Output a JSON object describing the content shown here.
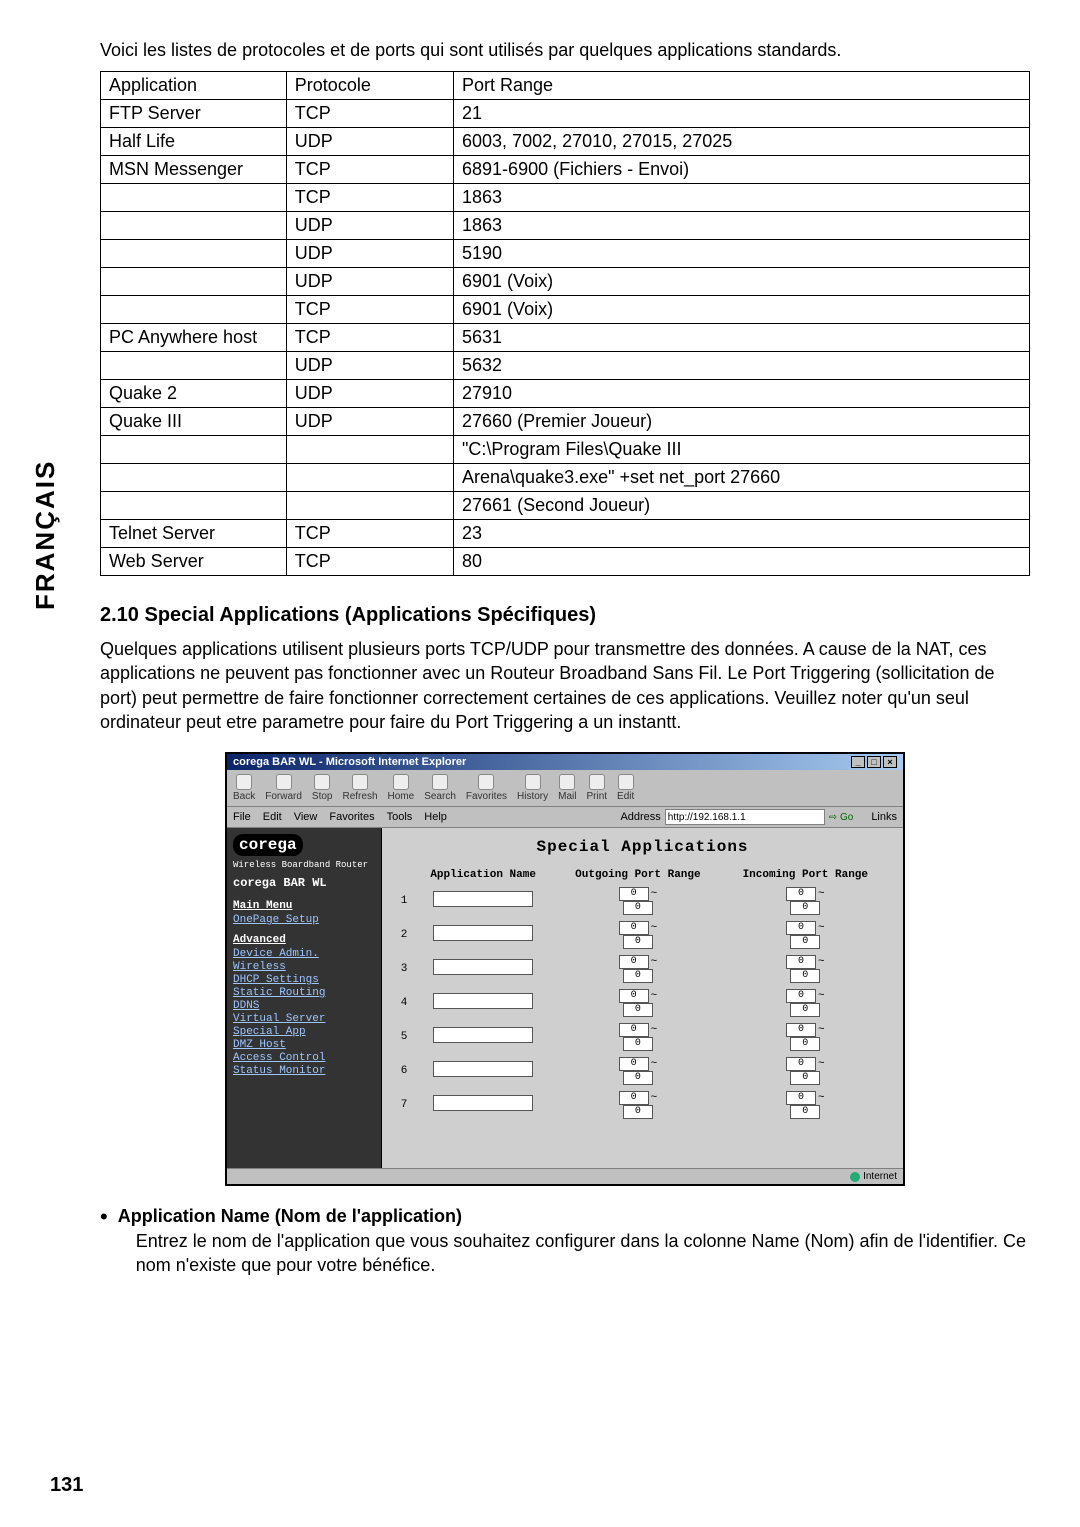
{
  "sidebar_lang": "FRANÇAIS",
  "page_number": "131",
  "intro": "Voici les listes de protocoles et de ports qui sont utilisés par quelques applications standards.",
  "table": {
    "headers": [
      "Application",
      "Protocole",
      "Port Range"
    ],
    "rows": [
      [
        "FTP Server",
        "TCP",
        "21"
      ],
      [
        "Half Life",
        "UDP",
        "6003, 7002, 27010, 27015, 27025"
      ],
      [
        "MSN Messenger",
        "TCP",
        "6891-6900 (Fichiers - Envoi)"
      ],
      [
        "",
        "TCP",
        "1863"
      ],
      [
        "",
        "UDP",
        "1863"
      ],
      [
        "",
        "UDP",
        "5190"
      ],
      [
        "",
        "UDP",
        "6901 (Voix)"
      ],
      [
        "",
        "TCP",
        "6901 (Voix)"
      ],
      [
        "PC Anywhere host",
        "TCP",
        "5631"
      ],
      [
        "",
        "UDP",
        "5632"
      ],
      [
        "Quake 2",
        "UDP",
        "27910"
      ],
      [
        "Quake III",
        "UDP",
        "27660 (Premier Joueur)"
      ],
      [
        "",
        "",
        "\"C:\\Program Files\\Quake III"
      ],
      [
        "",
        "",
        "Arena\\quake3.exe\" +set net_port 27660"
      ],
      [
        "",
        "",
        "27661 (Second Joueur)"
      ],
      [
        "Telnet Server",
        "TCP",
        "23"
      ],
      [
        "Web Server",
        "TCP",
        "80"
      ]
    ],
    "group_borders": [
      0,
      1,
      2,
      8,
      10,
      11,
      15,
      16
    ]
  },
  "section": {
    "title": "2.10 Special Applications (Applications Spécifiques)",
    "body": "Quelques applications utilisent plusieurs ports TCP/UDP pour transmettre des données. A cause de la NAT, ces applications ne peuvent pas fonctionner avec un Routeur Broadband Sans Fil. Le Port Triggering (sollicitation de port) peut permettre de faire fonctionner correctement certaines de ces applications. Veuillez noter qu'un seul ordinateur peut etre parametre pour faire du Port Triggering a un instantt."
  },
  "ie": {
    "title": "corega BAR WL - Microsoft Internet Explorer",
    "toolbar": [
      "Back",
      "Forward",
      "Stop",
      "Refresh",
      "Home",
      "Search",
      "Favorites",
      "History",
      "Mail",
      "Print",
      "Edit"
    ],
    "links_label": "Links",
    "menubar": [
      "File",
      "Edit",
      "View",
      "Favorites",
      "Tools",
      "Help"
    ],
    "address_label": "Address",
    "address_value": "http://192.168.1.1",
    "go_label": "Go",
    "status": "Internet"
  },
  "corega": {
    "logo": "corega",
    "sub": "Wireless Boardband Router",
    "model": "corega  BAR WL",
    "main_menu": "Main Menu",
    "onepage": "OnePage Setup",
    "advanced": "Advanced",
    "links": [
      "Device Admin.",
      "Wireless",
      "DHCP Settings",
      "Static Routing",
      "DDNS",
      "Virtual Server",
      "Special App",
      "DMZ Host",
      "Access Control",
      "Status Monitor"
    ]
  },
  "sa": {
    "title": "Special Applications",
    "headers": [
      "",
      "Application Name",
      "Outgoing Port Range",
      "Incoming Port Range"
    ],
    "row_count": 7,
    "port_default": "0"
  },
  "bullet": {
    "head": "Application Name (Nom de l'application)",
    "body": "Entrez le nom de l'application que vous souhaitez configurer dans la colonne Name (Nom) afin de l'identifier. Ce nom n'existe que pour votre bénéfice."
  }
}
